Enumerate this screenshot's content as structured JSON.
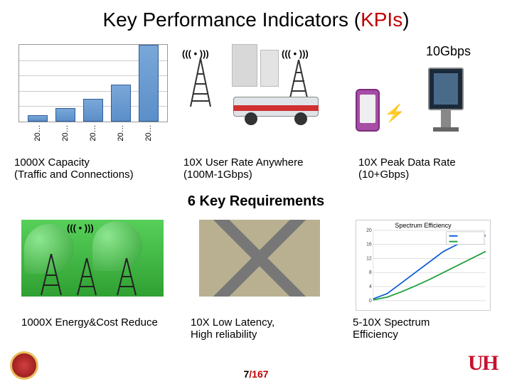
{
  "title": {
    "pre": "Key Performance Indicators (",
    "kpis": "KPIs",
    "post": ")"
  },
  "chart": {
    "type": "bar",
    "bar_color": "#5b8fc9",
    "border_color": "#999999",
    "grid_color": "#cccccc",
    "heights_pct": [
      8,
      18,
      30,
      48,
      100
    ],
    "xlabels": [
      "20…",
      "20…",
      "20…",
      "20…",
      "20…"
    ],
    "xlabel_fontsize": 11
  },
  "gbps_label": "10Gbps",
  "kpi_row1": {
    "c1_line1": "1000X Capacity",
    "c1_line2": "(Traffic and Connections)",
    "c2_line1": "10X User Rate Anywhere",
    "c2_line2": "(100M-1Gbps)",
    "c3_line1": "10X Peak Data Rate",
    "c3_line2": "(10+Gbps)"
  },
  "section_title": "6 Key Requirements",
  "spectrum_chart": {
    "type": "line",
    "title": "Spectrum Efficiency",
    "line1_color": "#1060d0",
    "line2_color": "#20a040",
    "xlim": [
      0,
      40
    ],
    "ylim": [
      0,
      20
    ],
    "ytick_step": 2,
    "grid_color": "#e0e0e0",
    "line1_points": [
      [
        0,
        0.5
      ],
      [
        5,
        2
      ],
      [
        10,
        5
      ],
      [
        15,
        8
      ],
      [
        20,
        11
      ],
      [
        25,
        14
      ],
      [
        30,
        16
      ],
      [
        35,
        17.5
      ],
      [
        40,
        18.5
      ]
    ],
    "line2_points": [
      [
        0,
        0.2
      ],
      [
        5,
        1
      ],
      [
        10,
        2.5
      ],
      [
        15,
        4.2
      ],
      [
        20,
        6
      ],
      [
        25,
        8
      ],
      [
        30,
        10
      ],
      [
        35,
        12
      ],
      [
        40,
        14
      ]
    ]
  },
  "kpi_row2": {
    "d1": "1000X Energy&Cost Reduce",
    "d2_line1": "10X Low Latency,",
    "d2_line2": "High reliability",
    "d3_line1": "5-10X Spectrum",
    "d3_line2": "Efficiency"
  },
  "footer": {
    "page": "7",
    "sep": "/",
    "total": "167"
  },
  "logos": {
    "left": "peking-university-seal",
    "right_u": "U",
    "right_h": "H"
  },
  "colors": {
    "accent_red": "#c00000",
    "text": "#000000",
    "uh_red": "#c8102e"
  }
}
